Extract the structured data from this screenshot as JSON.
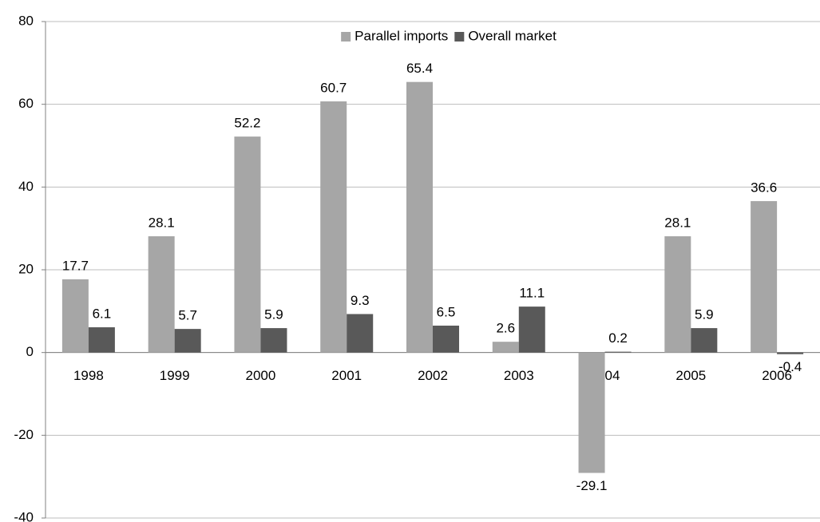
{
  "chart_data": {
    "type": "bar",
    "categories": [
      "1998",
      "1999",
      "2000",
      "2001",
      "2002",
      "2003",
      "2004",
      "2005",
      "2006"
    ],
    "series": [
      {
        "name": "Parallel imports",
        "color": "#a6a6a6",
        "values": [
          17.7,
          28.1,
          52.2,
          60.7,
          65.4,
          2.6,
          -29.1,
          28.1,
          36.6
        ]
      },
      {
        "name": "Overall market",
        "color": "#595959",
        "values": [
          6.1,
          5.7,
          5.9,
          9.3,
          6.5,
          11.1,
          0.2,
          5.9,
          -0.4
        ]
      }
    ],
    "ylim": [
      -40,
      80
    ],
    "yticks": [
      -40,
      -20,
      0,
      20,
      40,
      60,
      80
    ],
    "grid": true,
    "legend": "top"
  }
}
